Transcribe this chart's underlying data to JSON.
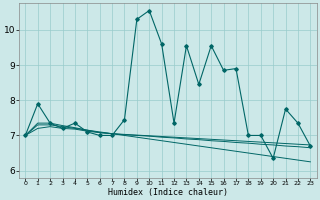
{
  "title": "",
  "xlabel": "Humidex (Indice chaleur)",
  "bg_color": "#cce8e8",
  "line_color": "#006666",
  "grid_color": "#99cccc",
  "xlim": [
    -0.5,
    23.5
  ],
  "ylim": [
    5.8,
    10.75
  ],
  "yticks": [
    6,
    7,
    8,
    9,
    10
  ],
  "xticks": [
    0,
    1,
    2,
    3,
    4,
    5,
    6,
    7,
    8,
    9,
    10,
    11,
    12,
    13,
    14,
    15,
    16,
    17,
    18,
    19,
    20,
    21,
    22,
    23
  ],
  "series0": [
    7.0,
    7.9,
    7.35,
    7.2,
    7.35,
    7.1,
    7.0,
    7.0,
    7.45,
    10.3,
    10.55,
    9.6,
    7.35,
    9.55,
    8.45,
    9.55,
    8.85,
    8.9,
    7.0,
    7.0,
    6.35,
    7.75,
    7.35,
    6.7
  ],
  "series1": [
    7.0,
    7.3,
    7.3,
    7.25,
    7.2,
    7.15,
    7.1,
    7.05,
    7.0,
    6.95,
    6.9,
    6.85,
    6.8,
    6.75,
    6.7,
    6.65,
    6.6,
    6.55,
    6.5,
    6.45,
    6.4,
    6.35,
    6.3,
    6.25
  ],
  "series2": [
    7.0,
    7.2,
    7.25,
    7.2,
    7.18,
    7.12,
    7.08,
    7.05,
    7.02,
    7.0,
    6.98,
    6.95,
    6.93,
    6.9,
    6.88,
    6.85,
    6.83,
    6.8,
    6.78,
    6.75,
    6.73,
    6.7,
    6.68,
    6.65
  ],
  "series3": [
    7.0,
    7.35,
    7.35,
    7.28,
    7.22,
    7.15,
    7.08,
    7.05,
    7.03,
    7.01,
    6.99,
    6.97,
    6.95,
    6.93,
    6.91,
    6.89,
    6.87,
    6.85,
    6.83,
    6.81,
    6.79,
    6.77,
    6.75,
    6.73
  ]
}
